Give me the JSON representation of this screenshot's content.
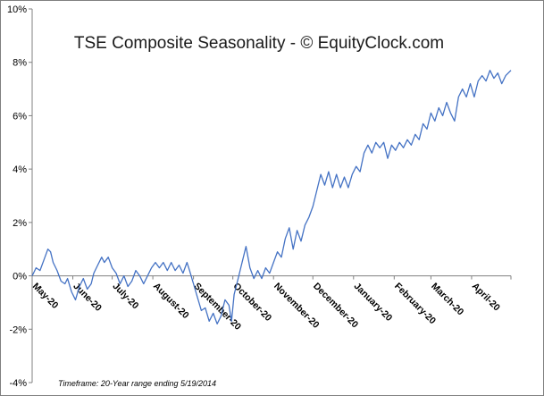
{
  "chart_data": {
    "type": "line",
    "title": "TSE Composite Seasonality - © EquityClock.com",
    "footnote": "Timeframe: 20-Year range ending 5/19/2014",
    "xlabel": "",
    "ylabel": "",
    "ylim": [
      -4,
      10
    ],
    "y_ticks": [
      "-4%",
      "-2%",
      "0%",
      "2%",
      "4%",
      "6%",
      "8%",
      "10%"
    ],
    "y_tick_values": [
      -4,
      -2,
      0,
      2,
      4,
      6,
      8,
      10
    ],
    "x_ticks": [
      "May-20",
      "June-20",
      "July-20",
      "August-20",
      "September-20",
      "October-20",
      "November-20",
      "December-20",
      "January-20",
      "February-20",
      "March-20",
      "April-20"
    ],
    "x_range": [
      0,
      365
    ],
    "x_tick_positions": [
      0,
      31,
      61,
      92,
      123,
      153,
      184,
      214,
      245,
      276,
      304,
      335
    ],
    "grid": false,
    "legend": "none",
    "line_color": "#4472c4",
    "series": [
      {
        "values": [
          [
            0,
            0.0
          ],
          [
            3,
            0.3
          ],
          [
            6,
            0.2
          ],
          [
            9,
            0.6
          ],
          [
            12,
            1.0
          ],
          [
            14,
            0.9
          ],
          [
            16,
            0.5
          ],
          [
            19,
            0.2
          ],
          [
            22,
            -0.2
          ],
          [
            25,
            -0.3
          ],
          [
            27,
            -0.1
          ],
          [
            30,
            -0.6
          ],
          [
            33,
            -0.9
          ],
          [
            36,
            -0.4
          ],
          [
            39,
            -0.1
          ],
          [
            42,
            -0.5
          ],
          [
            45,
            -0.3
          ],
          [
            47,
            0.1
          ],
          [
            50,
            0.4
          ],
          [
            53,
            0.7
          ],
          [
            55,
            0.5
          ],
          [
            58,
            0.7
          ],
          [
            61,
            0.3
          ],
          [
            64,
            0.1
          ],
          [
            67,
            -0.3
          ],
          [
            70,
            0.0
          ],
          [
            73,
            -0.4
          ],
          [
            76,
            -0.2
          ],
          [
            79,
            0.2
          ],
          [
            82,
            0.0
          ],
          [
            85,
            -0.3
          ],
          [
            88,
            0.0
          ],
          [
            91,
            0.3
          ],
          [
            94,
            0.5
          ],
          [
            97,
            0.3
          ],
          [
            100,
            0.5
          ],
          [
            103,
            0.2
          ],
          [
            106,
            0.5
          ],
          [
            109,
            0.2
          ],
          [
            112,
            0.4
          ],
          [
            115,
            0.1
          ],
          [
            118,
            0.5
          ],
          [
            120,
            0.2
          ],
          [
            123,
            -0.3
          ],
          [
            126,
            -0.8
          ],
          [
            129,
            -1.3
          ],
          [
            132,
            -1.2
          ],
          [
            135,
            -1.7
          ],
          [
            138,
            -1.4
          ],
          [
            141,
            -1.8
          ],
          [
            144,
            -1.5
          ],
          [
            147,
            -0.9
          ],
          [
            150,
            -1.1
          ],
          [
            152,
            -1.7
          ],
          [
            154,
            -0.7
          ],
          [
            157,
            -0.1
          ],
          [
            160,
            0.5
          ],
          [
            163,
            1.1
          ],
          [
            166,
            0.3
          ],
          [
            169,
            -0.1
          ],
          [
            172,
            0.2
          ],
          [
            175,
            -0.1
          ],
          [
            178,
            0.3
          ],
          [
            181,
            0.1
          ],
          [
            184,
            0.5
          ],
          [
            187,
            0.9
          ],
          [
            190,
            0.7
          ],
          [
            193,
            1.4
          ],
          [
            196,
            1.8
          ],
          [
            199,
            1.0
          ],
          [
            202,
            1.7
          ],
          [
            205,
            1.3
          ],
          [
            208,
            1.9
          ],
          [
            211,
            2.2
          ],
          [
            214,
            2.6
          ],
          [
            217,
            3.2
          ],
          [
            220,
            3.8
          ],
          [
            223,
            3.4
          ],
          [
            226,
            3.9
          ],
          [
            229,
            3.3
          ],
          [
            232,
            3.8
          ],
          [
            235,
            3.3
          ],
          [
            238,
            3.7
          ],
          [
            241,
            3.3
          ],
          [
            244,
            3.8
          ],
          [
            247,
            4.1
          ],
          [
            250,
            3.9
          ],
          [
            253,
            4.6
          ],
          [
            256,
            4.9
          ],
          [
            259,
            4.6
          ],
          [
            262,
            5.0
          ],
          [
            265,
            4.8
          ],
          [
            268,
            5.0
          ],
          [
            271,
            4.4
          ],
          [
            274,
            4.9
          ],
          [
            277,
            4.7
          ],
          [
            280,
            5.0
          ],
          [
            283,
            4.8
          ],
          [
            286,
            5.1
          ],
          [
            289,
            4.9
          ],
          [
            292,
            5.3
          ],
          [
            295,
            5.1
          ],
          [
            298,
            5.7
          ],
          [
            301,
            5.5
          ],
          [
            304,
            6.1
          ],
          [
            307,
            5.8
          ],
          [
            310,
            6.3
          ],
          [
            313,
            6.0
          ],
          [
            316,
            6.5
          ],
          [
            319,
            6.1
          ],
          [
            322,
            5.8
          ],
          [
            325,
            6.7
          ],
          [
            328,
            7.0
          ],
          [
            331,
            6.7
          ],
          [
            334,
            7.2
          ],
          [
            337,
            6.7
          ],
          [
            340,
            7.3
          ],
          [
            343,
            7.5
          ],
          [
            346,
            7.3
          ],
          [
            349,
            7.7
          ],
          [
            352,
            7.4
          ],
          [
            355,
            7.6
          ],
          [
            358,
            7.2
          ],
          [
            361,
            7.5
          ],
          [
            365,
            7.7
          ]
        ]
      }
    ]
  }
}
